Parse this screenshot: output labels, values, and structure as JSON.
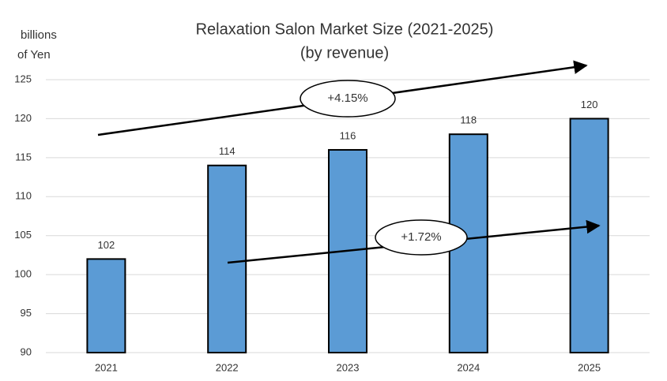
{
  "chart_data": {
    "type": "bar",
    "title": "Relaxation Salon Market Size (2021-2025)",
    "subtitle": "(by revenue)",
    "y_label_lines": [
      "billions",
      "of Yen"
    ],
    "categories": [
      "2021",
      "2022",
      "2023",
      "2024",
      "2025"
    ],
    "values": [
      102,
      114,
      116,
      118,
      120
    ],
    "color": "#5b9bd5",
    "ylim": [
      90,
      125
    ],
    "yticks": [
      90,
      95,
      100,
      105,
      110,
      115,
      120,
      125
    ],
    "grid": true,
    "annotations": [
      {
        "text": "+4.15%"
      },
      {
        "text": "+1.72%"
      }
    ]
  }
}
